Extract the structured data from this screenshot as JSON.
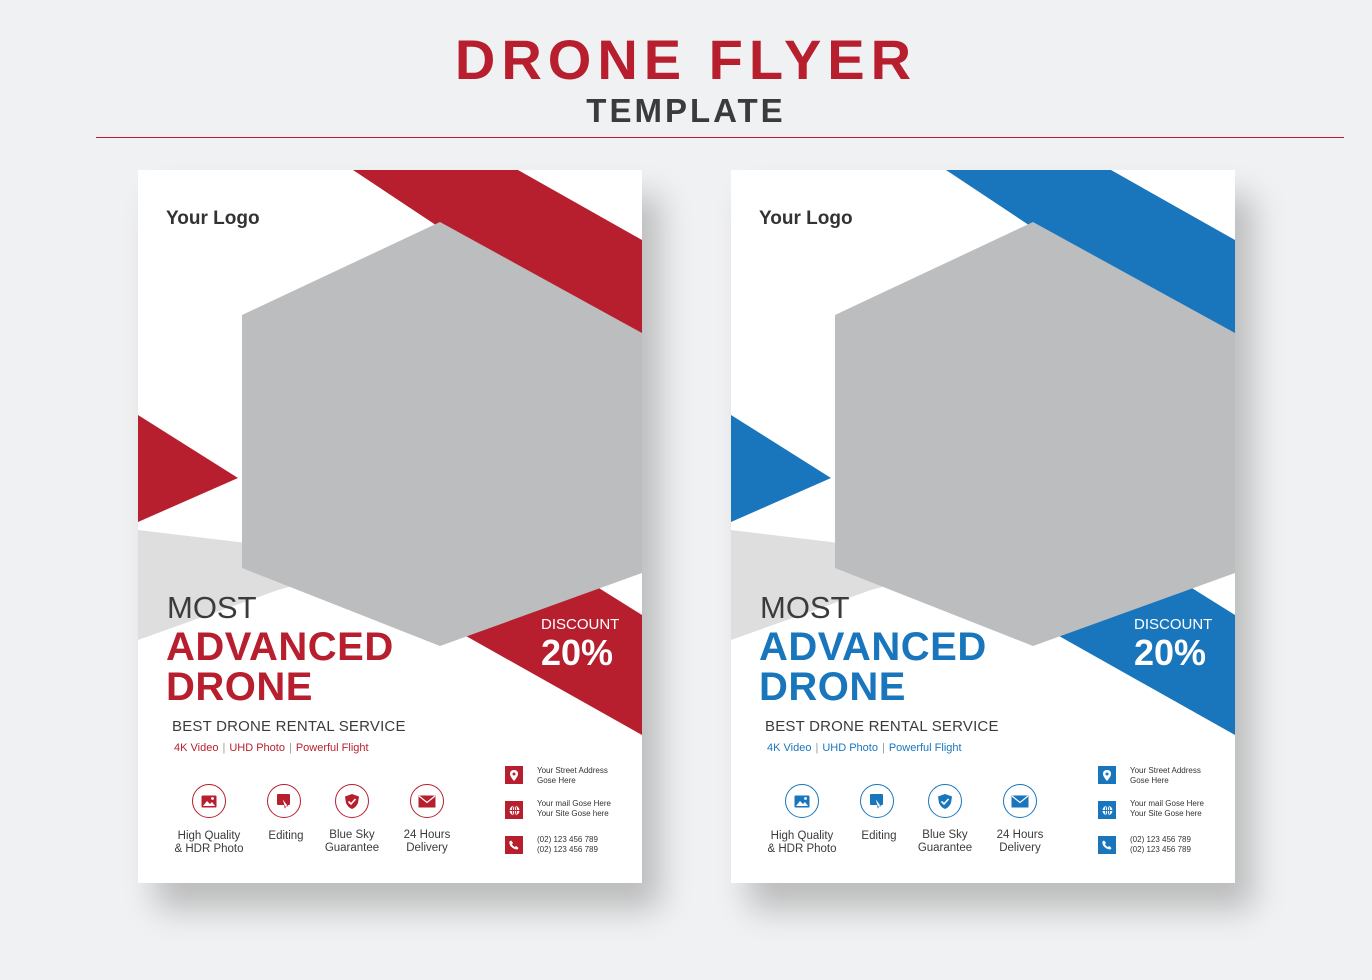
{
  "header": {
    "title": "DRONE FLYER",
    "subtitle": "TEMPLATE"
  },
  "flyers": [
    {
      "theme": "red",
      "accent_color": "#b81f2e",
      "logo": "Your Logo",
      "headline_1": "MOST",
      "headline_2": "ADVANCED",
      "headline_3": "DRONE",
      "discount_label": "DISCOUNT",
      "discount_value": "20%",
      "service": "BEST DRONE RENTAL SERVICE",
      "features": [
        "4K Video",
        "UHD Photo",
        "Powerful Flight"
      ],
      "services": [
        {
          "icon": "image-icon",
          "line1": "High Quality",
          "line2": "& HDR Photo"
        },
        {
          "icon": "edit-icon",
          "line1": "Editing",
          "line2": ""
        },
        {
          "icon": "shield-check-icon",
          "line1": "Blue Sky",
          "line2": "Guarantee"
        },
        {
          "icon": "mail-icon",
          "line1": "24 Hours",
          "line2": "Delivery"
        }
      ],
      "contacts": [
        {
          "icon": "location-pin-icon",
          "line1": "Your Street Address",
          "line2": "Gose Here"
        },
        {
          "icon": "globe-icon",
          "line1": "Your mail Gose Here",
          "line2": "Your Site Gose here"
        },
        {
          "icon": "phone-icon",
          "line1": "(02) 123 456 789",
          "line2": "(02) 123 456 789"
        }
      ]
    },
    {
      "theme": "blue",
      "accent_color": "#1976bc",
      "logo": "Your Logo",
      "headline_1": "MOST",
      "headline_2": "ADVANCED",
      "headline_3": "DRONE",
      "discount_label": "DISCOUNT",
      "discount_value": "20%",
      "service": "BEST DRONE RENTAL SERVICE",
      "features": [
        "4K Video",
        "UHD Photo",
        "Powerful Flight"
      ],
      "services": [
        {
          "icon": "image-icon",
          "line1": "High Quality",
          "line2": "& HDR Photo"
        },
        {
          "icon": "edit-icon",
          "line1": "Editing",
          "line2": ""
        },
        {
          "icon": "shield-check-icon",
          "line1": "Blue Sky",
          "line2": "Guarantee"
        },
        {
          "icon": "mail-icon",
          "line1": "24 Hours",
          "line2": "Delivery"
        }
      ],
      "contacts": [
        {
          "icon": "location-pin-icon",
          "line1": "Your Street Address",
          "line2": "Gose Here"
        },
        {
          "icon": "globe-icon",
          "line1": "Your mail Gose Here",
          "line2": "Your Site Gose here"
        },
        {
          "icon": "phone-icon",
          "line1": "(02) 123 456 789",
          "line2": "(02) 123 456 789"
        }
      ]
    }
  ]
}
